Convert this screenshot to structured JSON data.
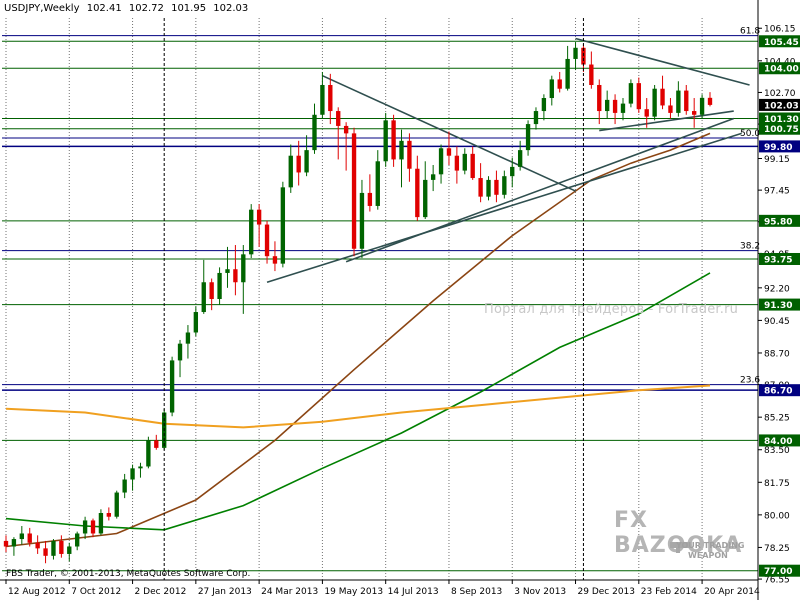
{
  "header": {
    "symbol_timeframe": "USDJPY,Weekly",
    "open": "102.41",
    "high": "102.72",
    "low": "101.95",
    "close": "102.03"
  },
  "copyright": "FBS Trader, © 2001-2013, MetaQuotes Software Corp.",
  "watermark": "Портал для трейдеров - ForTrader.ru",
  "logo": {
    "name": "FX BAZOOKA",
    "tagline_1": "YOUR TRADING",
    "tagline_2": "WEAPON"
  },
  "colors": {
    "bull_candle": "#006400",
    "bear_candle": "#e00000",
    "sma_brown": "#8b4513",
    "sma_green": "#008000",
    "sma_orange": "#f0a020",
    "trendline": "#2f4f4f",
    "support_resistance": "#006000",
    "fib_line": "#000080",
    "current_price_tag": "#000000"
  },
  "chart_data": {
    "type": "candlestick",
    "symbol": "USDJPY",
    "timeframe": "Weekly",
    "ylim": [
      76.5,
      106.7
    ],
    "y_ticks": [
      "106.15",
      "104.40",
      "102.70",
      "101.00",
      "99.15",
      "97.45",
      "95.75",
      "94.05",
      "92.20",
      "90.45",
      "88.70",
      "87.00",
      "85.25",
      "83.50",
      "81.75",
      "80.00",
      "78.25",
      "76.55"
    ],
    "x_labels": [
      "12 Aug 2012",
      "7 Oct 2012",
      "2 Dec 2012",
      "27 Jan 2013",
      "24 Mar 2013",
      "19 May 2013",
      "14 Jul 2013",
      "8 Sep 2013",
      "3 Nov 2013",
      "29 Dec 2013",
      "23 Feb 2014",
      "20 Apr 2014"
    ],
    "candles": [
      [
        78.6,
        78.9,
        78.0,
        78.3
      ],
      [
        78.3,
        78.8,
        77.8,
        78.7
      ],
      [
        78.7,
        79.4,
        78.4,
        79.0
      ],
      [
        79.0,
        79.3,
        78.3,
        78.5
      ],
      [
        78.5,
        78.9,
        77.9,
        78.2
      ],
      [
        78.2,
        78.6,
        77.4,
        77.8
      ],
      [
        77.8,
        78.7,
        77.6,
        78.6
      ],
      [
        78.6,
        78.9,
        77.7,
        77.9
      ],
      [
        77.9,
        78.5,
        77.5,
        78.3
      ],
      [
        78.3,
        79.1,
        78.1,
        79.0
      ],
      [
        79.0,
        79.9,
        78.7,
        79.7
      ],
      [
        79.7,
        79.8,
        78.8,
        79.0
      ],
      [
        79.0,
        80.3,
        78.9,
        80.1
      ],
      [
        80.1,
        80.4,
        79.7,
        79.9
      ],
      [
        79.9,
        81.3,
        79.8,
        81.2
      ],
      [
        81.2,
        82.2,
        80.9,
        81.9
      ],
      [
        81.9,
        82.7,
        81.3,
        82.5
      ],
      [
        82.5,
        82.8,
        82.0,
        82.6
      ],
      [
        82.6,
        84.2,
        82.5,
        84.0
      ],
      [
        84.0,
        84.3,
        83.5,
        83.6
      ],
      [
        83.6,
        85.7,
        83.5,
        85.5
      ],
      [
        85.5,
        88.5,
        85.3,
        88.3
      ],
      [
        88.3,
        89.4,
        87.4,
        89.2
      ],
      [
        89.2,
        90.2,
        88.4,
        89.8
      ],
      [
        89.8,
        91.2,
        89.6,
        90.9
      ],
      [
        90.9,
        93.7,
        90.8,
        92.5
      ],
      [
        92.5,
        92.7,
        91.0,
        91.6
      ],
      [
        91.6,
        93.3,
        91.3,
        93.0
      ],
      [
        93.0,
        94.4,
        92.2,
        93.2
      ],
      [
        93.2,
        94.5,
        91.8,
        92.5
      ],
      [
        92.5,
        94.5,
        90.8,
        94.0
      ],
      [
        94.0,
        96.7,
        93.8,
        96.4
      ],
      [
        96.4,
        96.7,
        94.4,
        95.6
      ],
      [
        95.6,
        95.8,
        93.5,
        93.9
      ],
      [
        93.9,
        94.7,
        93.1,
        93.5
      ],
      [
        93.5,
        97.9,
        93.3,
        97.6
      ],
      [
        97.6,
        99.9,
        97.3,
        99.3
      ],
      [
        99.3,
        100.1,
        97.7,
        98.4
      ],
      [
        98.4,
        100.4,
        98.2,
        99.6
      ],
      [
        99.6,
        102.1,
        99.4,
        101.5
      ],
      [
        101.5,
        103.8,
        101.3,
        103.1
      ],
      [
        103.1,
        103.7,
        101.0,
        101.7
      ],
      [
        101.7,
        101.9,
        99.1,
        100.9
      ],
      [
        100.9,
        101.1,
        98.5,
        100.5
      ],
      [
        100.5,
        100.8,
        93.9,
        94.3
      ],
      [
        94.3,
        98.0,
        93.8,
        97.3
      ],
      [
        97.3,
        98.3,
        96.3,
        96.6
      ],
      [
        96.6,
        99.6,
        96.4,
        99.0
      ],
      [
        99.0,
        101.6,
        98.7,
        101.2
      ],
      [
        101.2,
        101.5,
        98.7,
        99.1
      ],
      [
        99.1,
        100.7,
        97.6,
        100.1
      ],
      [
        100.1,
        100.5,
        97.9,
        98.6
      ],
      [
        98.6,
        99.3,
        95.8,
        96.0
      ],
      [
        96.0,
        99.0,
        95.9,
        98.0
      ],
      [
        98.0,
        98.8,
        97.4,
        98.3
      ],
      [
        98.3,
        99.9,
        97.8,
        99.7
      ],
      [
        99.7,
        100.6,
        98.8,
        99.3
      ],
      [
        99.3,
        99.8,
        97.8,
        98.5
      ],
      [
        98.5,
        99.7,
        98.3,
        99.4
      ],
      [
        99.4,
        99.8,
        98.0,
        98.1
      ],
      [
        98.1,
        98.9,
        96.8,
        97.1
      ],
      [
        97.1,
        98.2,
        96.9,
        98.0
      ],
      [
        98.0,
        98.5,
        96.8,
        97.2
      ],
      [
        97.2,
        98.5,
        97.0,
        98.2
      ],
      [
        98.2,
        99.2,
        97.6,
        98.7
      ],
      [
        98.7,
        100.1,
        98.5,
        99.6
      ],
      [
        99.6,
        101.2,
        99.3,
        101.0
      ],
      [
        101.0,
        101.9,
        100.7,
        101.7
      ],
      [
        101.7,
        102.6,
        101.2,
        102.4
      ],
      [
        102.4,
        103.6,
        102.0,
        103.4
      ],
      [
        103.4,
        103.8,
        102.7,
        102.9
      ],
      [
        102.9,
        105.2,
        102.8,
        104.5
      ],
      [
        104.5,
        105.4,
        103.9,
        105.1
      ],
      [
        105.1,
        105.3,
        103.8,
        104.2
      ],
      [
        104.2,
        104.9,
        102.9,
        103.1
      ],
      [
        103.1,
        103.4,
        101.0,
        101.7
      ],
      [
        101.7,
        102.8,
        101.3,
        102.3
      ],
      [
        102.3,
        102.6,
        101.0,
        101.6
      ],
      [
        101.6,
        102.4,
        101.2,
        102.1
      ],
      [
        102.1,
        103.4,
        101.9,
        103.2
      ],
      [
        103.2,
        103.5,
        101.6,
        101.8
      ],
      [
        101.8,
        102.4,
        100.8,
        101.4
      ],
      [
        101.4,
        103.1,
        101.2,
        102.9
      ],
      [
        102.9,
        103.6,
        101.8,
        102.0
      ],
      [
        102.0,
        102.4,
        101.3,
        101.6
      ],
      [
        101.6,
        103.3,
        101.4,
        102.8
      ],
      [
        102.8,
        103.1,
        101.5,
        101.7
      ],
      [
        101.7,
        102.4,
        100.8,
        101.5
      ],
      [
        101.5,
        102.6,
        101.3,
        102.41
      ],
      [
        102.41,
        102.72,
        101.95,
        102.03
      ]
    ],
    "horizontal_levels": [
      {
        "label": "105.45",
        "value": 105.45,
        "color": "#006000"
      },
      {
        "label": "104.00",
        "value": 104.0,
        "color": "#006000"
      },
      {
        "label": "102.03",
        "value": 102.03,
        "color": "#000000"
      },
      {
        "label": "101.30",
        "value": 101.3,
        "color": "#006000"
      },
      {
        "label": "100.75",
        "value": 100.75,
        "color": "#006000"
      },
      {
        "label": "99.80",
        "value": 99.8,
        "color": "#000080"
      },
      {
        "label": "95.80",
        "value": 95.8,
        "color": "#006000"
      },
      {
        "label": "93.75",
        "value": 93.75,
        "color": "#006000"
      },
      {
        "label": "91.30",
        "value": 91.3,
        "color": "#006000"
      },
      {
        "label": "86.70",
        "value": 86.7,
        "color": "#000080"
      },
      {
        "label": "84.00",
        "value": 84.0,
        "color": "#006000"
      },
      {
        "label": "77.00",
        "value": 77.0,
        "color": "#006000"
      }
    ],
    "fib_levels": [
      {
        "label": "61.8",
        "value": 105.75
      },
      {
        "label": "50.0",
        "value": 100.25
      },
      {
        "label": "38.2",
        "value": 94.2
      },
      {
        "label": "23.6",
        "value": 87.0
      }
    ],
    "moving_averages": [
      {
        "color": "#8b4513",
        "points": [
          [
            0,
            78.3
          ],
          [
            14,
            79.0
          ],
          [
            24,
            80.8
          ],
          [
            34,
            84.0
          ],
          [
            44,
            87.8
          ],
          [
            54,
            91.5
          ],
          [
            64,
            95.0
          ],
          [
            74,
            98.0
          ],
          [
            79,
            98.9
          ],
          [
            84,
            99.6
          ],
          [
            89,
            100.5
          ]
        ]
      },
      {
        "color": "#008000",
        "points": [
          [
            0,
            79.8
          ],
          [
            10,
            79.4
          ],
          [
            20,
            79.2
          ],
          [
            30,
            80.5
          ],
          [
            40,
            82.5
          ],
          [
            50,
            84.4
          ],
          [
            60,
            86.6
          ],
          [
            70,
            89.0
          ],
          [
            80,
            90.8
          ],
          [
            89,
            93.0
          ]
        ]
      },
      {
        "color": "#f0a020",
        "points": [
          [
            0,
            85.7
          ],
          [
            10,
            85.5
          ],
          [
            20,
            84.9
          ],
          [
            30,
            84.7
          ],
          [
            40,
            85.0
          ],
          [
            50,
            85.5
          ],
          [
            60,
            85.9
          ],
          [
            70,
            86.3
          ],
          [
            80,
            86.7
          ],
          [
            89,
            86.95
          ]
        ]
      }
    ],
    "trendlines": [
      {
        "points": [
          [
            40,
            103.6
          ],
          [
            72,
            97.4
          ]
        ]
      },
      {
        "points": [
          [
            72,
            105.6
          ],
          [
            94,
            103.1
          ]
        ]
      },
      {
        "points": [
          [
            33,
            92.5
          ],
          [
            93,
            100.5
          ]
        ]
      },
      {
        "points": [
          [
            43,
            93.6
          ],
          [
            92,
            101.3
          ]
        ]
      },
      {
        "points": [
          [
            75,
            100.65
          ],
          [
            92,
            101.7
          ]
        ]
      }
    ]
  }
}
